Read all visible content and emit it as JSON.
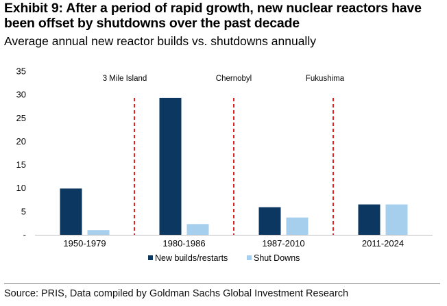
{
  "title": "Exhibit 9: After a period of rapid growth, new nuclear reactors have been offset by shutdowns over the past decade",
  "subtitle": "Average annual new reactor builds vs. shutdowns annually",
  "source": "Source: PRIS, Data compiled by Goldman Sachs Global Investment Research",
  "chart_data": {
    "type": "bar",
    "categories": [
      "1950-1979",
      "1980-1986",
      "1987-2010",
      "2011-2024"
    ],
    "series": [
      {
        "name": "New builds/restarts",
        "color": "#0b3761",
        "values": [
          9.9,
          29.3,
          5.9,
          6.5
        ]
      },
      {
        "name": "Shut Downs",
        "color": "#a6cfee",
        "values": [
          1.0,
          2.3,
          3.7,
          6.5
        ]
      }
    ],
    "ylim": [
      0,
      35
    ],
    "yticks": [
      {
        "value": 0,
        "label": "-"
      },
      {
        "value": 5,
        "label": "5"
      },
      {
        "value": 10,
        "label": "10"
      },
      {
        "value": 15,
        "label": "15"
      },
      {
        "value": 20,
        "label": "20"
      },
      {
        "value": 25,
        "label": "25"
      },
      {
        "value": 30,
        "label": "30"
      },
      {
        "value": 35,
        "label": "35"
      }
    ],
    "events": [
      {
        "label": "3 Mile Island",
        "line_after_category": 0,
        "color": "#e02020"
      },
      {
        "label": "Chernobyl",
        "line_after_category": 1,
        "color": "#e02020"
      },
      {
        "label": "Fukushima",
        "line_after_category": 2,
        "color": "#e02020"
      }
    ],
    "legend_position": "bottom",
    "grid": false
  }
}
